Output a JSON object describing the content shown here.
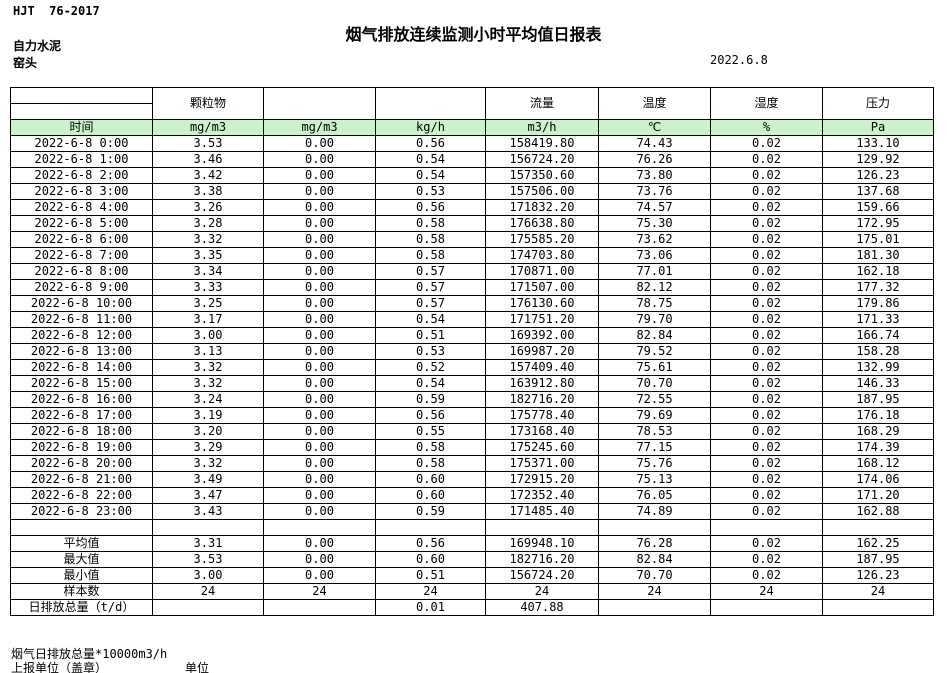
{
  "page": {
    "standard": "HJT  76-2017",
    "title": "烟气排放连续监测小时平均值日报表",
    "company": "自力水泥",
    "kiln": "窑头",
    "date": "2022.6.8"
  },
  "colors": {
    "header_green": "#ccf2cc"
  },
  "table": {
    "header": {
      "time_label": "时间",
      "col_labels": [
        "颗粒物",
        "",
        "",
        "流量",
        "温度",
        "湿度",
        "压力"
      ],
      "units": [
        "mg/m3",
        "mg/m3",
        "kg/h",
        "m3/h",
        "℃",
        "%",
        "Pa"
      ]
    },
    "rows": [
      {
        "time": "2022-6-8 0:00",
        "values": [
          "3.53",
          "0.00",
          "0.56",
          "158419.80",
          "74.43",
          "0.02",
          "133.10"
        ]
      },
      {
        "time": "2022-6-8 1:00",
        "values": [
          "3.46",
          "0.00",
          "0.54",
          "156724.20",
          "76.26",
          "0.02",
          "129.92"
        ]
      },
      {
        "time": "2022-6-8 2:00",
        "values": [
          "3.42",
          "0.00",
          "0.54",
          "157350.60",
          "73.80",
          "0.02",
          "126.23"
        ]
      },
      {
        "time": "2022-6-8 3:00",
        "values": [
          "3.38",
          "0.00",
          "0.53",
          "157506.00",
          "73.76",
          "0.02",
          "137.68"
        ]
      },
      {
        "time": "2022-6-8 4:00",
        "values": [
          "3.26",
          "0.00",
          "0.56",
          "171832.20",
          "74.57",
          "0.02",
          "159.66"
        ]
      },
      {
        "time": "2022-6-8 5:00",
        "values": [
          "3.28",
          "0.00",
          "0.58",
          "176638.80",
          "75.30",
          "0.02",
          "172.95"
        ]
      },
      {
        "time": "2022-6-8 6:00",
        "values": [
          "3.32",
          "0.00",
          "0.58",
          "175585.20",
          "73.62",
          "0.02",
          "175.01"
        ]
      },
      {
        "time": "2022-6-8 7:00",
        "values": [
          "3.35",
          "0.00",
          "0.58",
          "174703.80",
          "73.06",
          "0.02",
          "181.30"
        ]
      },
      {
        "time": "2022-6-8 8:00",
        "values": [
          "3.34",
          "0.00",
          "0.57",
          "170871.00",
          "77.01",
          "0.02",
          "162.18"
        ]
      },
      {
        "time": "2022-6-8 9:00",
        "values": [
          "3.33",
          "0.00",
          "0.57",
          "171507.00",
          "82.12",
          "0.02",
          "177.32"
        ]
      },
      {
        "time": "2022-6-8 10:00",
        "values": [
          "3.25",
          "0.00",
          "0.57",
          "176130.60",
          "78.75",
          "0.02",
          "179.86"
        ]
      },
      {
        "time": "2022-6-8 11:00",
        "values": [
          "3.17",
          "0.00",
          "0.54",
          "171751.20",
          "79.70",
          "0.02",
          "171.33"
        ]
      },
      {
        "time": "2022-6-8 12:00",
        "values": [
          "3.00",
          "0.00",
          "0.51",
          "169392.00",
          "82.84",
          "0.02",
          "166.74"
        ]
      },
      {
        "time": "2022-6-8 13:00",
        "values": [
          "3.13",
          "0.00",
          "0.53",
          "169987.20",
          "79.52",
          "0.02",
          "158.28"
        ]
      },
      {
        "time": "2022-6-8 14:00",
        "values": [
          "3.32",
          "0.00",
          "0.52",
          "157409.40",
          "75.61",
          "0.02",
          "132.99"
        ]
      },
      {
        "time": "2022-6-8 15:00",
        "values": [
          "3.32",
          "0.00",
          "0.54",
          "163912.80",
          "70.70",
          "0.02",
          "146.33"
        ]
      },
      {
        "time": "2022-6-8 16:00",
        "values": [
          "3.24",
          "0.00",
          "0.59",
          "182716.20",
          "72.55",
          "0.02",
          "187.95"
        ]
      },
      {
        "time": "2022-6-8 17:00",
        "values": [
          "3.19",
          "0.00",
          "0.56",
          "175778.40",
          "79.69",
          "0.02",
          "176.18"
        ]
      },
      {
        "time": "2022-6-8 18:00",
        "values": [
          "3.20",
          "0.00",
          "0.55",
          "173168.40",
          "78.53",
          "0.02",
          "168.29"
        ]
      },
      {
        "time": "2022-6-8 19:00",
        "values": [
          "3.29",
          "0.00",
          "0.58",
          "175245.60",
          "77.15",
          "0.02",
          "174.39"
        ]
      },
      {
        "time": "2022-6-8 20:00",
        "values": [
          "3.32",
          "0.00",
          "0.58",
          "175371.00",
          "75.76",
          "0.02",
          "168.12"
        ]
      },
      {
        "time": "2022-6-8 21:00",
        "values": [
          "3.49",
          "0.00",
          "0.60",
          "172915.20",
          "75.13",
          "0.02",
          "174.06"
        ]
      },
      {
        "time": "2022-6-8 22:00",
        "values": [
          "3.47",
          "0.00",
          "0.60",
          "172352.40",
          "76.05",
          "0.02",
          "171.20"
        ]
      },
      {
        "time": "2022-6-8 23:00",
        "values": [
          "3.43",
          "0.00",
          "0.59",
          "171485.40",
          "74.89",
          "0.02",
          "162.88"
        ]
      }
    ],
    "summary": [
      {
        "label": "平均值",
        "values": [
          "3.31",
          "0.00",
          "0.56",
          "169948.10",
          "76.28",
          "0.02",
          "162.25"
        ]
      },
      {
        "label": "最大值",
        "values": [
          "3.53",
          "0.00",
          "0.60",
          "182716.20",
          "82.84",
          "0.02",
          "187.95"
        ]
      },
      {
        "label": "最小值",
        "values": [
          "3.00",
          "0.00",
          "0.51",
          "156724.20",
          "70.70",
          "0.02",
          "126.23"
        ]
      },
      {
        "label": "样本数",
        "values": [
          "24",
          "24",
          "24",
          "24",
          "24",
          "24",
          "24"
        ]
      },
      {
        "label": "日排放总量（t/d）",
        "values": [
          "",
          "",
          "0.01",
          "407.88",
          "",
          "",
          ""
        ]
      }
    ]
  },
  "footer": {
    "note": "烟气日排放总量*10000m3/h",
    "stamp_line": "上报单位（盖章）",
    "unit_label": "单位"
  }
}
